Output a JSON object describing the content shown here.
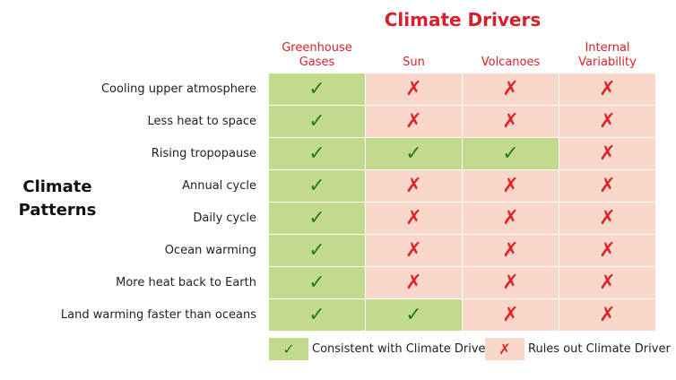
{
  "title": "Climate Drivers",
  "row_group_title": "Climate Patterns",
  "columns": [
    "Greenhouse Gases",
    "Sun",
    "Volcanoes",
    "Internal Variability"
  ],
  "rows": [
    {
      "label": "Cooling upper atmosphere",
      "values": [
        "consistent",
        "rules_out",
        "rules_out",
        "rules_out"
      ]
    },
    {
      "label": "Less heat to space",
      "values": [
        "consistent",
        "rules_out",
        "rules_out",
        "rules_out"
      ]
    },
    {
      "label": "Rising tropopause",
      "values": [
        "consistent",
        "consistent",
        "consistent",
        "rules_out"
      ]
    },
    {
      "label": "Annual cycle",
      "values": [
        "consistent",
        "rules_out",
        "rules_out",
        "rules_out"
      ]
    },
    {
      "label": "Daily cycle",
      "values": [
        "consistent",
        "rules_out",
        "rules_out",
        "rules_out"
      ]
    },
    {
      "label": "Ocean warming",
      "values": [
        "consistent",
        "rules_out",
        "rules_out",
        "rules_out"
      ]
    },
    {
      "label": "More heat back to Earth",
      "values": [
        "consistent",
        "rules_out",
        "rules_out",
        "rules_out"
      ]
    },
    {
      "label": "Land warming faster than oceans",
      "values": [
        "consistent",
        "consistent",
        "rules_out",
        "rules_out"
      ]
    }
  ],
  "symbols": {
    "consistent": "✓",
    "rules_out": "✗"
  },
  "legend": {
    "consistent_label": "Consistent with Climate Driver",
    "rules_out_label": "Rules out Climate Driver"
  },
  "colors": {
    "title": "#d8202a",
    "consistent_bg": "#c2da8b",
    "consistent_mark": "#2a7a1f",
    "rules_out_bg": "#f9d8cb",
    "rules_out_mark": "#e2222a"
  }
}
